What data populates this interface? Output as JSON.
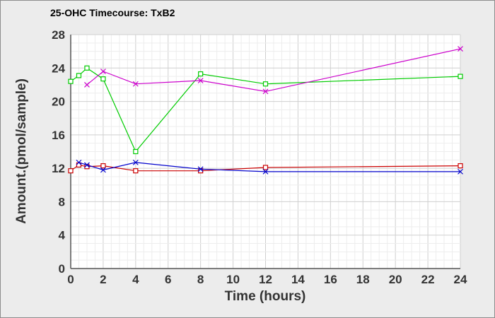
{
  "chart_data": {
    "type": "line",
    "title": "25-OHC Timecourse: TxB2",
    "xlabel": "Time (hours)",
    "ylabel": "Amount.(pmol/sample)",
    "xlim": [
      0,
      24
    ],
    "ylim": [
      0,
      28
    ],
    "xticks": [
      0,
      2,
      4,
      6,
      8,
      10,
      12,
      14,
      16,
      18,
      20,
      22,
      24
    ],
    "yticks": [
      0,
      4,
      8,
      12,
      16,
      20,
      24,
      28
    ],
    "grid": true,
    "legend": "none",
    "series": [
      {
        "color": "#00cc00",
        "marker": "square",
        "x": [
          0,
          0.5,
          1,
          2,
          4,
          8,
          12,
          24
        ],
        "y": [
          22.4,
          23.1,
          24.0,
          22.7,
          14.0,
          23.3,
          22.1,
          23.0
        ]
      },
      {
        "color": "#cc00cc",
        "marker": "x",
        "x": [
          1,
          2,
          4,
          8,
          12,
          24
        ],
        "y": [
          22.0,
          23.6,
          22.1,
          22.5,
          21.2,
          26.3
        ]
      },
      {
        "color": "#cc0000",
        "marker": "square",
        "x": [
          0,
          0.5,
          1,
          2,
          4,
          8,
          12,
          24
        ],
        "y": [
          11.7,
          12.4,
          12.2,
          12.3,
          11.7,
          11.7,
          12.1,
          12.3
        ]
      },
      {
        "color": "#0000cc",
        "marker": "x",
        "x": [
          0.5,
          1,
          2,
          4,
          8,
          12,
          24
        ],
        "y": [
          12.7,
          12.4,
          11.8,
          12.7,
          11.9,
          11.6,
          11.6
        ]
      }
    ]
  }
}
